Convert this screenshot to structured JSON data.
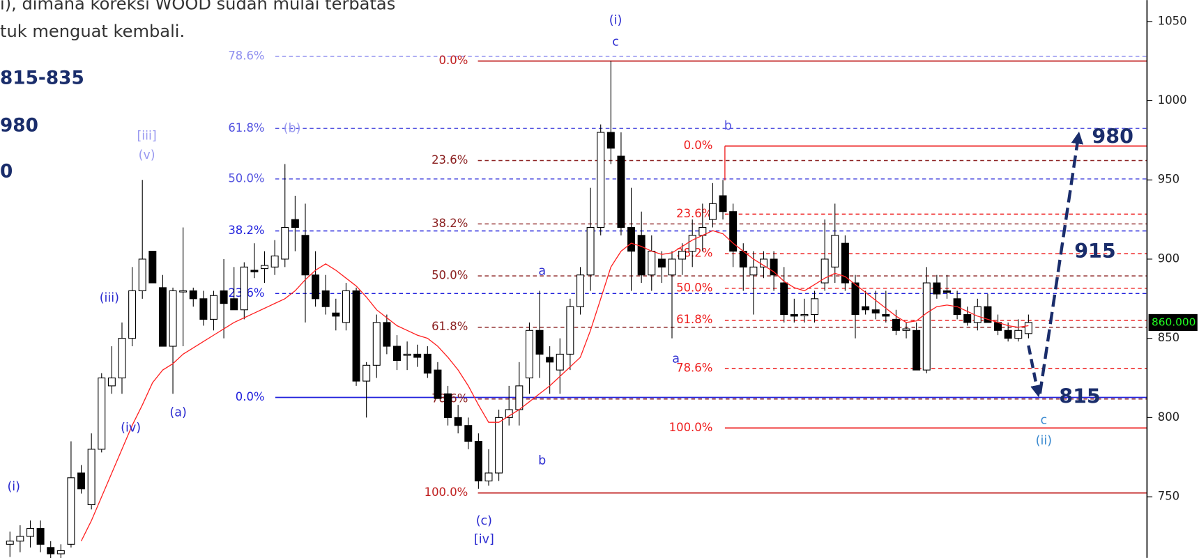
{
  "chart_data": {
    "type": "candlestick",
    "ylim": [
      711.4,
      1063.5
    ],
    "yticks": [
      750,
      800,
      850,
      900,
      950,
      1000,
      1050
    ],
    "up_color": "#ffffff",
    "down_color": "#000000",
    "ma_color": "#ff2020",
    "last_price": {
      "value": 860,
      "label": "860.000"
    },
    "notes": [
      "i), dimana koreksi WOOD sudah mulai terbatas",
      "tuk menguat kembali.",
      "815-835",
      "980",
      "0"
    ],
    "candles": [
      [
        720,
        728,
        712,
        722
      ],
      [
        722,
        732,
        715,
        725
      ],
      [
        725,
        735,
        718,
        730
      ],
      [
        730,
        735,
        715,
        720
      ],
      [
        718,
        722,
        710,
        714
      ],
      [
        714,
        720,
        708,
        716
      ],
      [
        720,
        785,
        718,
        762
      ],
      [
        765,
        770,
        752,
        755
      ],
      [
        745,
        790,
        742,
        780
      ],
      [
        780,
        828,
        778,
        825
      ],
      [
        820,
        845,
        815,
        825
      ],
      [
        825,
        860,
        815,
        850
      ],
      [
        850,
        895,
        845,
        880
      ],
      [
        880,
        950,
        875,
        900
      ],
      [
        905,
        905,
        885,
        885
      ],
      [
        882,
        890,
        845,
        845
      ],
      [
        845,
        882,
        815,
        880
      ],
      [
        880,
        920,
        845,
        880
      ],
      [
        880,
        882,
        870,
        875
      ],
      [
        875,
        880,
        858,
        862
      ],
      [
        862,
        880,
        855,
        877
      ],
      [
        880,
        900,
        850,
        872
      ],
      [
        875,
        895,
        870,
        868
      ],
      [
        868,
        898,
        862,
        895
      ],
      [
        893,
        910,
        888,
        892
      ],
      [
        894,
        905,
        885,
        896
      ],
      [
        895,
        912,
        890,
        902
      ],
      [
        900,
        960,
        895,
        920
      ],
      [
        925,
        940,
        905,
        920
      ],
      [
        915,
        935,
        860,
        890
      ],
      [
        890,
        905,
        870,
        875
      ],
      [
        880,
        890,
        865,
        870
      ],
      [
        866,
        875,
        855,
        864
      ],
      [
        860,
        885,
        855,
        880
      ],
      [
        880,
        882,
        820,
        823
      ],
      [
        823,
        835,
        800,
        833
      ],
      [
        833,
        865,
        825,
        860
      ],
      [
        860,
        865,
        840,
        845
      ],
      [
        845,
        852,
        830,
        836
      ],
      [
        840,
        848,
        830,
        840
      ],
      [
        840,
        846,
        832,
        838
      ],
      [
        840,
        845,
        825,
        828
      ],
      [
        830,
        835,
        812,
        812
      ],
      [
        815,
        820,
        795,
        800
      ],
      [
        800,
        808,
        790,
        795
      ],
      [
        795,
        800,
        780,
        785
      ],
      [
        785,
        790,
        755,
        760
      ],
      [
        760,
        780,
        757,
        765
      ],
      [
        765,
        805,
        760,
        800
      ],
      [
        800,
        820,
        795,
        805
      ],
      [
        805,
        835,
        795,
        820
      ],
      [
        825,
        860,
        815,
        855
      ],
      [
        855,
        880,
        825,
        840
      ],
      [
        838,
        845,
        815,
        835
      ],
      [
        830,
        850,
        815,
        840
      ],
      [
        840,
        875,
        830,
        870
      ],
      [
        870,
        895,
        865,
        890
      ],
      [
        890,
        945,
        880,
        920
      ],
      [
        920,
        985,
        915,
        980
      ],
      [
        980,
        1025,
        960,
        970
      ],
      [
        965,
        980,
        915,
        920
      ],
      [
        920,
        945,
        880,
        905
      ],
      [
        915,
        930,
        885,
        890
      ],
      [
        890,
        915,
        880,
        905
      ],
      [
        900,
        905,
        885,
        895
      ],
      [
        890,
        905,
        850,
        900
      ],
      [
        900,
        910,
        890,
        905
      ],
      [
        905,
        925,
        895,
        915
      ],
      [
        915,
        935,
        905,
        920
      ],
      [
        925,
        948,
        920,
        935
      ],
      [
        940,
        950,
        925,
        930
      ],
      [
        930,
        935,
        895,
        905
      ],
      [
        905,
        910,
        880,
        895
      ],
      [
        890,
        905,
        865,
        895
      ],
      [
        895,
        905,
        888,
        900
      ],
      [
        900,
        905,
        880,
        890
      ],
      [
        885,
        895,
        860,
        865
      ],
      [
        865,
        875,
        860,
        864
      ],
      [
        865,
        875,
        860,
        865
      ],
      [
        865,
        880,
        860,
        875
      ],
      [
        885,
        925,
        880,
        900
      ],
      [
        895,
        935,
        885,
        915
      ],
      [
        910,
        915,
        880,
        885
      ],
      [
        885,
        890,
        850,
        865
      ],
      [
        870,
        880,
        865,
        868
      ],
      [
        868,
        880,
        862,
        866
      ],
      [
        865,
        880,
        860,
        864
      ],
      [
        862,
        868,
        852,
        855
      ],
      [
        855,
        860,
        850,
        856
      ],
      [
        855,
        860,
        830,
        830
      ],
      [
        830,
        895,
        828,
        885
      ],
      [
        885,
        890,
        875,
        878
      ],
      [
        880,
        890,
        875,
        879
      ],
      [
        875,
        880,
        862,
        865
      ],
      [
        865,
        870,
        858,
        860
      ],
      [
        860,
        875,
        855,
        870
      ],
      [
        870,
        878,
        860,
        860
      ],
      [
        860,
        865,
        852,
        855
      ],
      [
        855,
        860,
        848,
        850
      ],
      [
        850,
        862,
        848,
        855
      ],
      [
        853,
        865,
        850,
        860
      ]
    ],
    "ma": [
      null,
      null,
      null,
      null,
      null,
      null,
      null,
      722,
      735,
      750,
      765,
      780,
      795,
      808,
      822,
      830,
      834,
      840,
      844,
      848,
      852,
      856,
      860,
      863,
      866,
      869,
      872,
      875,
      880,
      887,
      893,
      897,
      893,
      888,
      883,
      876,
      868,
      863,
      858,
      855,
      852,
      850,
      845,
      838,
      830,
      820,
      808,
      797,
      797,
      801,
      805,
      810,
      815,
      820,
      826,
      832,
      838,
      855,
      875,
      895,
      905,
      910,
      908,
      905,
      903,
      904,
      908,
      912,
      915,
      918,
      916,
      910,
      905,
      900,
      896,
      892,
      886,
      882,
      880,
      884,
      888,
      891,
      889,
      884,
      879,
      874,
      869,
      864,
      860,
      861,
      866,
      870,
      871,
      870,
      867,
      864,
      862,
      860,
      858,
      857,
      858
    ],
    "levels": [
      {
        "label": "78.6%",
        "value": 1028,
        "color": "#8f8fef",
        "style": "dashed"
      },
      {
        "label": "61.8%",
        "value": 982.5,
        "color": "#5555e0",
        "style": "dashed"
      },
      {
        "label": "50.0%",
        "value": 950.6,
        "color": "#5555e0",
        "style": "dashed"
      },
      {
        "label": "38.2%",
        "value": 917.8,
        "color": "#2222dd",
        "style": "dashed"
      },
      {
        "label": "23.6%",
        "value": 878.3,
        "color": "#2222dd",
        "style": "dashed"
      },
      {
        "label": "0.0%",
        "value": 812.7,
        "color": "#2222dd",
        "style": "solid"
      },
      {
        "label": "0.0%",
        "value": 1025,
        "color": "#c02020",
        "style": "solid"
      },
      {
        "label": "23.6%",
        "value": 962.2,
        "color": "#8b2020",
        "style": "dashed"
      },
      {
        "label": "38.2%",
        "value": 922.2,
        "color": "#8b2020",
        "style": "dashed"
      },
      {
        "label": "50.0%",
        "value": 889.4,
        "color": "#8b2020",
        "style": "dashed"
      },
      {
        "label": "61.8%",
        "value": 857,
        "color": "#8b2020",
        "style": "dashed"
      },
      {
        "label": "78.6%",
        "value": 811.7,
        "color": "#8b2020",
        "style": "dashed"
      },
      {
        "label": "100.0%",
        "value": 752.4,
        "color": "#c02020",
        "style": "solid"
      },
      {
        "label": "0.0%",
        "value": 971.4,
        "color": "#ee1c1c",
        "style": "solid"
      },
      {
        "label": "23.6%",
        "value": 928.4,
        "color": "#ee1c1c",
        "style": "dashed"
      },
      {
        "label": "38.2%",
        "value": 903.4,
        "color": "#ee1c1c",
        "style": "dashed"
      },
      {
        "label": "50.0%",
        "value": 881.6,
        "color": "#ee1c1c",
        "style": "dashed"
      },
      {
        "label": "61.8%",
        "value": 861.4,
        "color": "#ee1c1c",
        "style": "dashed"
      },
      {
        "label": "78.6%",
        "value": 831,
        "color": "#ee1c1c",
        "style": "dashed"
      },
      {
        "label": "100.0%",
        "value": 793.4,
        "color": "#ee1c1c",
        "style": "solid"
      }
    ],
    "waves": [
      {
        "text": "(i)",
        "color": "#2a2ad0"
      },
      {
        "text": "(iii)",
        "color": "#2a2ad0"
      },
      {
        "text": "(iv)",
        "color": "#2a2ad0"
      },
      {
        "text": "[iii]",
        "color": "#9a9af0"
      },
      {
        "text": "(v)",
        "color": "#9a9af0"
      },
      {
        "text": "(a)",
        "color": "#2a2ad0"
      },
      {
        "text": "(b)",
        "color": "#9a9af0"
      },
      {
        "text": "a",
        "color": "#2a2ad0"
      },
      {
        "text": "b",
        "color": "#2a2ad0"
      },
      {
        "text": "(c)",
        "color": "#2a2ad0"
      },
      {
        "text": "[iv]",
        "color": "#2a2ad0"
      },
      {
        "text": "(i)",
        "color": "#2a2ad0"
      },
      {
        "text": "c",
        "color": "#2a2ad0"
      },
      {
        "text": "b",
        "color": "#5555e0"
      },
      {
        "text": "a",
        "color": "#2a2ad0"
      },
      {
        "text": "c",
        "color": "#3a8ad0"
      },
      {
        "text": "(ii)",
        "color": "#3a8ad0"
      }
    ],
    "targets": [
      "980",
      "915",
      "815"
    ]
  }
}
